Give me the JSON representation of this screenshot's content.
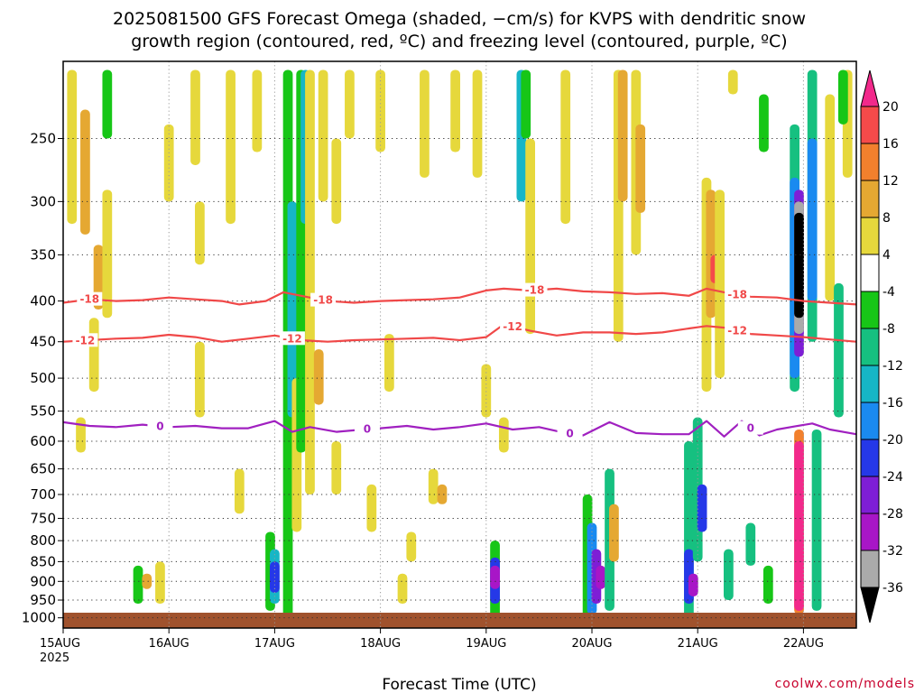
{
  "title_line1": "2025081500 GFS Forecast Omega (shaded, −cm/s) for KVPS with dendritic snow",
  "title_line2": "growth region (contoured, red, ºC) and freezing level (contoured, purple, ºC)",
  "credit": "coolwx.com/models",
  "chart_data": {
    "type": "heatmap",
    "xlabel": "Forecast Time (UTC)",
    "x_ticks": [
      {
        "label": "15AUG",
        "sub": "2025",
        "hour": 0
      },
      {
        "label": "16AUG",
        "sub": "",
        "hour": 24
      },
      {
        "label": "17AUG",
        "sub": "",
        "hour": 48
      },
      {
        "label": "18AUG",
        "sub": "",
        "hour": 72
      },
      {
        "label": "19AUG",
        "sub": "",
        "hour": 96
      },
      {
        "label": "20AUG",
        "sub": "",
        "hour": 120
      },
      {
        "label": "21AUG",
        "sub": "",
        "hour": 144
      },
      {
        "label": "22AUG",
        "sub": "",
        "hour": 168
      }
    ],
    "xlim": [
      0,
      180
    ],
    "y_ticks": [
      250,
      300,
      350,
      400,
      450,
      500,
      550,
      600,
      650,
      700,
      750,
      800,
      850,
      900,
      950,
      1000
    ],
    "ylim": [
      1030,
      200
    ],
    "y_scale": "log-pressure",
    "grid": true,
    "colorbar": {
      "labels": [
        "20",
        "16",
        "12",
        "8",
        "4",
        "-4",
        "-8",
        "-12",
        "-16",
        "-20",
        "-24",
        "-28",
        "-32",
        "-36"
      ],
      "colors": [
        "#f2298b",
        "#f54a4a",
        "#f2802d",
        "#e5a832",
        "#e6d83c",
        "#ffffff",
        "#17c617",
        "#16c080",
        "#16b6c6",
        "#1a8af0",
        "#2538e8",
        "#7e1ed6",
        "#a816c7",
        "#aaaaaa",
        "#000000"
      ]
    },
    "omega_cells": [
      {
        "x": 2,
        "p0": 205,
        "p1": 320,
        "v": 6
      },
      {
        "x": 5,
        "p0": 230,
        "p1": 330,
        "v": 8
      },
      {
        "x": 7,
        "p0": 420,
        "p1": 520,
        "v": 6
      },
      {
        "x": 8,
        "p0": 340,
        "p1": 410,
        "v": 10
      },
      {
        "x": 4,
        "p0": 560,
        "p1": 620,
        "v": 6
      },
      {
        "x": 10,
        "p0": 205,
        "p1": 250,
        "v": -6
      },
      {
        "x": 10,
        "p0": 290,
        "p1": 420,
        "v": 6
      },
      {
        "x": 17,
        "p0": 860,
        "p1": 960,
        "v": -6
      },
      {
        "x": 19,
        "p0": 880,
        "p1": 920,
        "v": 10
      },
      {
        "x": 22,
        "p0": 850,
        "p1": 960,
        "v": 6
      },
      {
        "x": 24,
        "p0": 240,
        "p1": 300,
        "v": 6
      },
      {
        "x": 30,
        "p0": 205,
        "p1": 270,
        "v": 6
      },
      {
        "x": 31,
        "p0": 300,
        "p1": 360,
        "v": 6
      },
      {
        "x": 31,
        "p0": 450,
        "p1": 560,
        "v": 6
      },
      {
        "x": 38,
        "p0": 205,
        "p1": 320,
        "v": 6
      },
      {
        "x": 40,
        "p0": 650,
        "p1": 740,
        "v": 6
      },
      {
        "x": 44,
        "p0": 205,
        "p1": 260,
        "v": 6
      },
      {
        "x": 47,
        "p0": 780,
        "p1": 980,
        "v": -6
      },
      {
        "x": 48,
        "p0": 820,
        "p1": 960,
        "v": -12
      },
      {
        "x": 48,
        "p0": 850,
        "p1": 930,
        "v": -20
      },
      {
        "x": 51,
        "p0": 205,
        "p1": 1000,
        "v": -6
      },
      {
        "x": 52,
        "p0": 300,
        "p1": 560,
        "v": -12
      },
      {
        "x": 53,
        "p0": 500,
        "p1": 780,
        "v": 6
      },
      {
        "x": 54,
        "p0": 205,
        "p1": 620,
        "v": -6
      },
      {
        "x": 55,
        "p0": 205,
        "p1": 320,
        "v": -12
      },
      {
        "x": 56,
        "p0": 205,
        "p1": 700,
        "v": 6
      },
      {
        "x": 58,
        "p0": 460,
        "p1": 540,
        "v": 10
      },
      {
        "x": 59,
        "p0": 205,
        "p1": 300,
        "v": 6
      },
      {
        "x": 62,
        "p0": 250,
        "p1": 320,
        "v": 6
      },
      {
        "x": 62,
        "p0": 600,
        "p1": 700,
        "v": 6
      },
      {
        "x": 65,
        "p0": 205,
        "p1": 250,
        "v": 6
      },
      {
        "x": 70,
        "p0": 680,
        "p1": 780,
        "v": 6
      },
      {
        "x": 72,
        "p0": 205,
        "p1": 260,
        "v": 6
      },
      {
        "x": 74,
        "p0": 440,
        "p1": 520,
        "v": 6
      },
      {
        "x": 77,
        "p0": 880,
        "p1": 960,
        "v": 6
      },
      {
        "x": 79,
        "p0": 780,
        "p1": 850,
        "v": 6
      },
      {
        "x": 82,
        "p0": 205,
        "p1": 280,
        "v": 6
      },
      {
        "x": 84,
        "p0": 650,
        "p1": 720,
        "v": 6
      },
      {
        "x": 86,
        "p0": 680,
        "p1": 720,
        "v": 10
      },
      {
        "x": 89,
        "p0": 205,
        "p1": 260,
        "v": 6
      },
      {
        "x": 94,
        "p0": 205,
        "p1": 280,
        "v": 6
      },
      {
        "x": 96,
        "p0": 480,
        "p1": 560,
        "v": 6
      },
      {
        "x": 98,
        "p0": 800,
        "p1": 1000,
        "v": -6
      },
      {
        "x": 98,
        "p0": 840,
        "p1": 960,
        "v": -20
      },
      {
        "x": 98,
        "p0": 860,
        "p1": 920,
        "v": -28
      },
      {
        "x": 100,
        "p0": 560,
        "p1": 620,
        "v": 6
      },
      {
        "x": 104,
        "p0": 205,
        "p1": 300,
        "v": -12
      },
      {
        "x": 105,
        "p0": 205,
        "p1": 250,
        "v": -6
      },
      {
        "x": 106,
        "p0": 250,
        "p1": 440,
        "v": 6
      },
      {
        "x": 114,
        "p0": 205,
        "p1": 320,
        "v": 6
      },
      {
        "x": 119,
        "p0": 700,
        "p1": 1000,
        "v": -6
      },
      {
        "x": 120,
        "p0": 760,
        "p1": 990,
        "v": -16
      },
      {
        "x": 121,
        "p0": 820,
        "p1": 960,
        "v": -24
      },
      {
        "x": 122,
        "p0": 860,
        "p1": 920,
        "v": -28
      },
      {
        "x": 124,
        "p0": 650,
        "p1": 980,
        "v": -8
      },
      {
        "x": 125,
        "p0": 720,
        "p1": 850,
        "v": 10
      },
      {
        "x": 126,
        "p0": 205,
        "p1": 450,
        "v": 6
      },
      {
        "x": 127,
        "p0": 205,
        "p1": 300,
        "v": 10
      },
      {
        "x": 130,
        "p0": 205,
        "p1": 350,
        "v": 6
      },
      {
        "x": 131,
        "p0": 240,
        "p1": 310,
        "v": 10
      },
      {
        "x": 142,
        "p0": 600,
        "p1": 1000,
        "v": -8
      },
      {
        "x": 142,
        "p0": 820,
        "p1": 960,
        "v": -20
      },
      {
        "x": 143,
        "p0": 880,
        "p1": 940,
        "v": -28
      },
      {
        "x": 144,
        "p0": 560,
        "p1": 850,
        "v": -8
      },
      {
        "x": 145,
        "p0": 680,
        "p1": 780,
        "v": -20
      },
      {
        "x": 146,
        "p0": 280,
        "p1": 520,
        "v": 6
      },
      {
        "x": 147,
        "p0": 290,
        "p1": 420,
        "v": 10
      },
      {
        "x": 148,
        "p0": 350,
        "p1": 380,
        "v": 16
      },
      {
        "x": 149,
        "p0": 290,
        "p1": 500,
        "v": 6
      },
      {
        "x": 151,
        "p0": 820,
        "p1": 950,
        "v": -8
      },
      {
        "x": 152,
        "p0": 205,
        "p1": 220,
        "v": 6
      },
      {
        "x": 156,
        "p0": 760,
        "p1": 860,
        "v": -8
      },
      {
        "x": 159,
        "p0": 220,
        "p1": 260,
        "v": -6
      },
      {
        "x": 160,
        "p0": 860,
        "p1": 960,
        "v": -6
      },
      {
        "x": 166,
        "p0": 240,
        "p1": 520,
        "v": -8
      },
      {
        "x": 166,
        "p0": 280,
        "p1": 500,
        "v": -16
      },
      {
        "x": 167,
        "p0": 290,
        "p1": 470,
        "v": -24
      },
      {
        "x": 167,
        "p0": 300,
        "p1": 440,
        "v": -32
      },
      {
        "x": 167,
        "p0": 310,
        "p1": 420,
        "v": -36
      },
      {
        "x": 167,
        "p0": 580,
        "p1": 990,
        "v": 12
      },
      {
        "x": 167,
        "p0": 600,
        "p1": 980,
        "v": 20
      },
      {
        "x": 170,
        "p0": 205,
        "p1": 450,
        "v": -8
      },
      {
        "x": 170,
        "p0": 250,
        "p1": 400,
        "v": -16
      },
      {
        "x": 171,
        "p0": 580,
        "p1": 980,
        "v": -8
      },
      {
        "x": 174,
        "p0": 220,
        "p1": 400,
        "v": 6
      },
      {
        "x": 176,
        "p0": 380,
        "p1": 560,
        "v": -8
      },
      {
        "x": 178,
        "p0": 205,
        "p1": 280,
        "v": 6
      },
      {
        "x": 177,
        "p0": 205,
        "p1": 240,
        "v": -6
      }
    ],
    "contours": [
      {
        "label": "-18",
        "color": "#f04848",
        "x": [
          0,
          6,
          12,
          18,
          24,
          30,
          36,
          40,
          46,
          50,
          54,
          60,
          66,
          72,
          78,
          84,
          90,
          96,
          100,
          106,
          112,
          118,
          124,
          130,
          136,
          142,
          146,
          150,
          156,
          162,
          168,
          174,
          180
        ],
        "p": [
          402,
          398,
          400,
          399,
          396,
          398,
          400,
          404,
          400,
          390,
          394,
          400,
          402,
          400,
          399,
          398,
          396,
          388,
          386,
          388,
          386,
          389,
          390,
          392,
          391,
          394,
          386,
          390,
          395,
          396,
          400,
          402,
          404
        ],
        "label_x": [
          6,
          59,
          107,
          153
        ]
      },
      {
        "label": "-12",
        "color": "#f04848",
        "x": [
          0,
          6,
          12,
          18,
          24,
          30,
          36,
          42,
          48,
          54,
          60,
          66,
          72,
          78,
          84,
          90,
          96,
          100,
          106,
          112,
          118,
          124,
          130,
          136,
          142,
          146,
          150,
          156,
          162,
          168,
          174,
          180
        ],
        "p": [
          450,
          448,
          446,
          445,
          441,
          444,
          450,
          446,
          442,
          448,
          450,
          448,
          447,
          446,
          445,
          448,
          444,
          428,
          436,
          442,
          438,
          438,
          440,
          438,
          433,
          430,
          432,
          440,
          442,
          444,
          447,
          450
        ],
        "label_x": [
          5,
          52,
          102,
          153
        ]
      },
      {
        "label": "0",
        "color": "#a020c0",
        "x": [
          0,
          6,
          12,
          18,
          24,
          30,
          36,
          42,
          48,
          52,
          56,
          62,
          68,
          72,
          78,
          84,
          90,
          96,
          102,
          108,
          114,
          118,
          124,
          130,
          136,
          142,
          146,
          150,
          154,
          158,
          162,
          166,
          170,
          174,
          180
        ],
        "p": [
          568,
          574,
          576,
          572,
          576,
          574,
          578,
          578,
          566,
          584,
          576,
          584,
          580,
          578,
          574,
          580,
          576,
          570,
          580,
          576,
          586,
          590,
          568,
          586,
          588,
          588,
          566,
          592,
          566,
          590,
          580,
          575,
          570,
          580,
          588
        ],
        "label_x": [
          22,
          69,
          115,
          156
        ]
      }
    ]
  }
}
